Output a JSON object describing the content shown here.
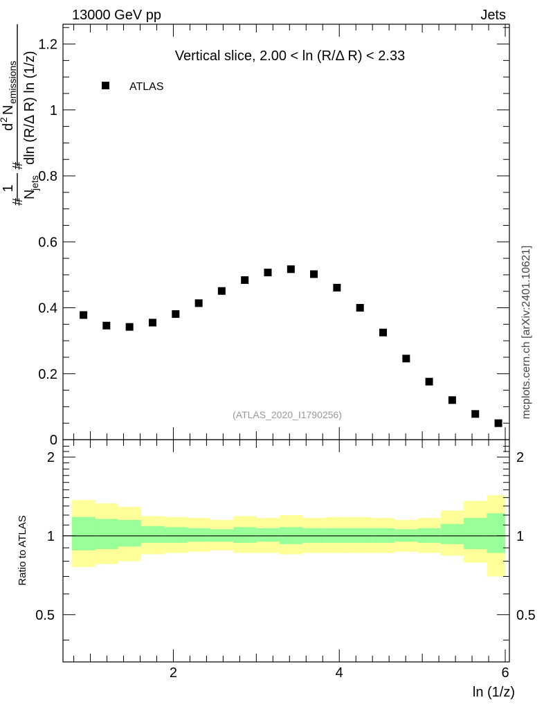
{
  "header": {
    "left": "13000 GeV pp",
    "right": "Jets"
  },
  "side_label": "mcplots.cern.ch [arXiv:2401.10621]",
  "watermark": "(ATLAS_2020_I1790256)",
  "chart_data": [
    {
      "type": "scatter",
      "title": "Vertical slice, 2.00 < ln (R/Δ R) < 2.33",
      "xlabel": "ln (1/z)",
      "ylabel_parts": {
        "main": "#frac{1}{N_{jets}} #frac{d^{2} N_{emissions}}{dln (R/Δ R) ln (1/z)}",
        "frac_top": "1",
        "frac_bottom": "N",
        "frac_bottom_sub": "jets",
        "hash": "#",
        "d2": "d",
        "d2_sup": "2",
        "n": " N",
        "n_sub": "emissions",
        "denom": "dln (R/Δ R) ln (1/z)"
      },
      "xlim": [
        0.67,
        6.05
      ],
      "ylim": [
        0,
        1.26
      ],
      "yticks": [
        0.2,
        0.4,
        0.6,
        0.8,
        1,
        1.2
      ],
      "ytick_labels": [
        "0.2",
        "0.4",
        "0.6",
        "0.8",
        "1",
        "1.2"
      ],
      "ytick_zero_label": "0",
      "legend": [
        {
          "name": "ATLAS",
          "marker": "square",
          "color": "#000000",
          "position": "top-left"
        }
      ],
      "series": [
        {
          "name": "ATLAS",
          "x": [
            0.917,
            1.194,
            1.472,
            1.75,
            2.028,
            2.306,
            2.583,
            2.861,
            3.139,
            3.417,
            3.694,
            3.972,
            4.25,
            4.528,
            4.806,
            5.083,
            5.361,
            5.639,
            5.917
          ],
          "y": [
            0.378,
            0.346,
            0.342,
            0.355,
            0.381,
            0.414,
            0.451,
            0.484,
            0.507,
            0.517,
            0.502,
            0.461,
            0.4,
            0.325,
            0.246,
            0.176,
            0.12,
            0.078,
            0.05
          ]
        }
      ]
    },
    {
      "type": "area",
      "ylabel": "Ratio to ATLAS",
      "ylim": [
        0.33,
        2.33
      ],
      "yticks": [
        0.5,
        1,
        2
      ],
      "ytick_labels": [
        "0.5",
        "1",
        "2"
      ],
      "xticks": [
        2,
        4,
        6
      ],
      "xtick_labels": [
        "2",
        "4",
        "6"
      ],
      "reference_line": 1,
      "bins": [
        0.778,
        1.056,
        1.333,
        1.611,
        1.889,
        2.167,
        2.444,
        2.722,
        3.0,
        3.278,
        3.556,
        3.833,
        4.111,
        4.389,
        4.667,
        4.944,
        5.222,
        5.5,
        5.778,
        6.056
      ],
      "bands": [
        {
          "name": "total uncertainty",
          "color": "#ffff99",
          "lower": [
            0.76,
            0.78,
            0.8,
            0.85,
            0.86,
            0.87,
            0.88,
            0.86,
            0.86,
            0.85,
            0.86,
            0.86,
            0.86,
            0.86,
            0.87,
            0.86,
            0.84,
            0.79,
            0.7
          ],
          "upper": [
            1.37,
            1.33,
            1.29,
            1.19,
            1.18,
            1.17,
            1.15,
            1.19,
            1.17,
            1.2,
            1.17,
            1.18,
            1.18,
            1.17,
            1.15,
            1.17,
            1.25,
            1.36,
            1.43
          ]
        },
        {
          "name": "statistical uncertainty",
          "color": "#99ff99",
          "lower": [
            0.88,
            0.89,
            0.91,
            0.94,
            0.94,
            0.95,
            0.95,
            0.94,
            0.95,
            0.93,
            0.94,
            0.94,
            0.94,
            0.94,
            0.95,
            0.94,
            0.93,
            0.89,
            0.86
          ],
          "upper": [
            1.18,
            1.16,
            1.15,
            1.09,
            1.08,
            1.07,
            1.06,
            1.08,
            1.07,
            1.08,
            1.07,
            1.07,
            1.07,
            1.07,
            1.06,
            1.07,
            1.11,
            1.17,
            1.22
          ]
        }
      ]
    }
  ]
}
